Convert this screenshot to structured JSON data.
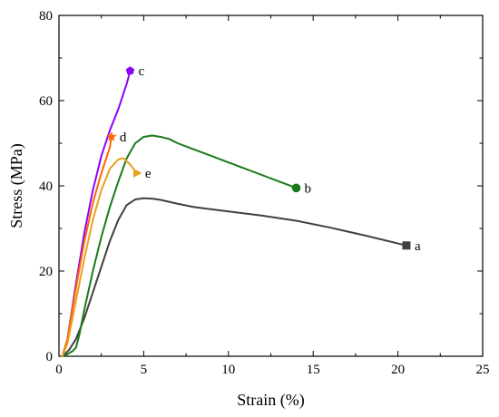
{
  "chart_data": {
    "type": "line",
    "title": "",
    "xlabel": "Strain (%)",
    "ylabel": "Stress (MPa)",
    "xlim": [
      0,
      25
    ],
    "ylim": [
      0,
      80
    ],
    "xticks": [
      "0",
      "5",
      "10",
      "15",
      "20",
      "25"
    ],
    "yticks": [
      "0",
      "20",
      "40",
      "60",
      "80"
    ],
    "grid": false,
    "legend": "none",
    "series": [
      {
        "name": "a",
        "color": "#404040",
        "marker": "square",
        "x": [
          0.2,
          0.6,
          1.0,
          1.5,
          2.0,
          2.5,
          3.0,
          3.5,
          4.0,
          4.5,
          5.0,
          5.5,
          6.0,
          7.0,
          8.0,
          10.0,
          12.0,
          14.0,
          16.0,
          18.0,
          20.5
        ],
        "y": [
          0,
          1.5,
          4,
          9,
          15,
          21,
          27,
          32,
          35.5,
          36.8,
          37.1,
          37.0,
          36.7,
          35.8,
          35.0,
          34.0,
          33.0,
          31.8,
          30.2,
          28.4,
          26
        ]
      },
      {
        "name": "b",
        "color": "#1a7a1a",
        "marker": "circle",
        "x": [
          0.2,
          0.5,
          0.8,
          1.0,
          1.2,
          1.5,
          2.0,
          2.5,
          3.0,
          3.5,
          4.0,
          4.5,
          5.0,
          5.5,
          6.0,
          6.5,
          7.0,
          8.0,
          9.0,
          10.0,
          11.0,
          12.0,
          13.0,
          14.0
        ],
        "y": [
          0,
          0.5,
          1.2,
          2,
          5,
          11,
          20,
          28,
          35,
          41,
          46.5,
          50,
          51.5,
          51.8,
          51.5,
          51,
          50,
          48.5,
          47,
          45.5,
          44,
          42.5,
          41,
          39.5
        ]
      },
      {
        "name": "c",
        "color": "#8b00ff",
        "marker": "pentagon",
        "x": [
          0.2,
          0.5,
          1.0,
          1.5,
          2.0,
          2.5,
          3.0,
          3.5,
          4.0,
          4.2
        ],
        "y": [
          0,
          4,
          17,
          29,
          39,
          47,
          53,
          58,
          64,
          67
        ]
      },
      {
        "name": "d",
        "color": "#ff6600",
        "marker": "star",
        "x": [
          0.2,
          0.5,
          1.0,
          1.5,
          2.0,
          2.5,
          3.0,
          3.1
        ],
        "y": [
          0,
          4,
          16,
          27,
          36,
          43,
          49,
          51.5
        ]
      },
      {
        "name": "e",
        "color": "#e8a020",
        "marker": "triangle-right",
        "x": [
          0.2,
          0.5,
          1.0,
          1.5,
          2.0,
          2.5,
          3.0,
          3.5,
          3.8,
          4.2,
          4.6
        ],
        "y": [
          0,
          3,
          13,
          23,
          32,
          39,
          44,
          46.2,
          46.5,
          45,
          43
        ]
      }
    ]
  }
}
